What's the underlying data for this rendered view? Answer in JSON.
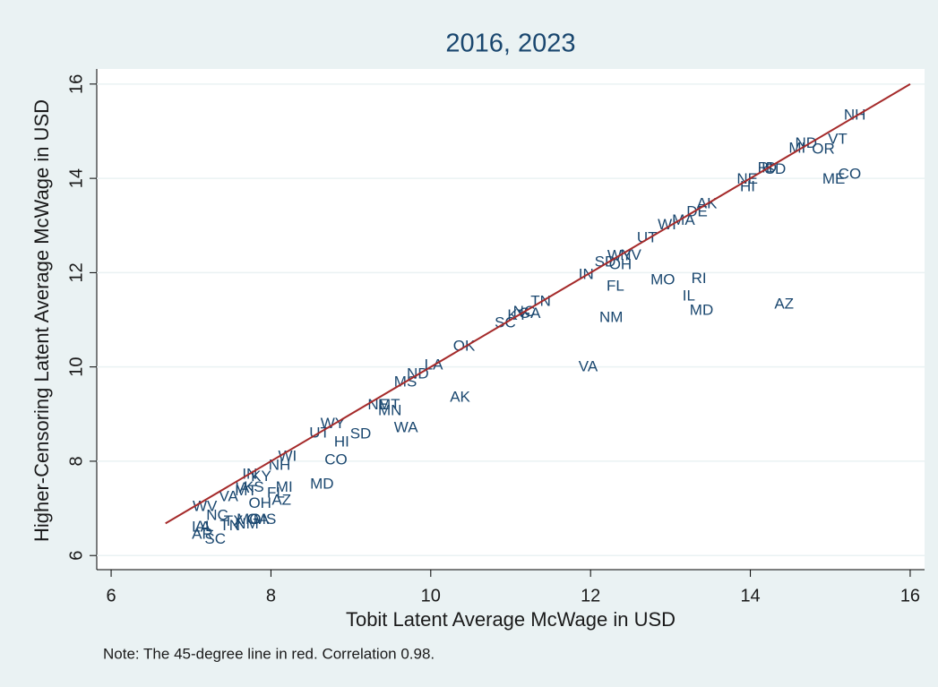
{
  "chart_data": {
    "type": "scatter-labels",
    "title": "2016, 2023",
    "x_label": "Tobit Latent Average McWage in USD",
    "y_label": "Higher-Censoring Latent Average McWage in USD",
    "note": "Note: The 45-degree line in red. Correlation 0.98.",
    "xlim": [
      5.82,
      16.18
    ],
    "ylim": [
      5.7,
      16.32
    ],
    "xticks": [
      6,
      8,
      10,
      12,
      14,
      16
    ],
    "yticks": [
      6,
      8,
      10,
      12,
      14,
      16
    ],
    "grid": true,
    "color": "#1a476f",
    "reference_line": {
      "x": [
        6.68,
        16
      ],
      "y": [
        6.68,
        16
      ],
      "color": "#a52a2a"
    },
    "labels": [
      "NH",
      "VT",
      "ND",
      "MI",
      "OR",
      "CO",
      "ME",
      "RI",
      "ID",
      "SD",
      "NE",
      "HI",
      "AK",
      "DE",
      "MA",
      "WI",
      "UT",
      "WY",
      "NV",
      "SD",
      "OH",
      "IN",
      "FL",
      "MO",
      "RI",
      "IL",
      "MD",
      "AZ",
      "NM",
      "TN",
      "SC",
      "KY",
      "NC",
      "GA",
      "VA",
      "OK",
      "LA",
      "ND",
      "MS",
      "AK",
      "NE",
      "MT",
      "MN",
      "WA",
      "WY",
      "UT",
      "HI",
      "SD",
      "CO",
      "MD",
      "WI",
      "NH",
      "MI",
      "FL",
      "AZ",
      "OH",
      "IN",
      "KY",
      "IA",
      "KS",
      "VA",
      "MT",
      "WV",
      "NC",
      "AL",
      "TX",
      "MO",
      "LA",
      "AR",
      "SC",
      "TN",
      "GA",
      "NM",
      "MS"
    ],
    "x": [
      15.17,
      14.97,
      14.56,
      14.48,
      14.77,
      15.1,
      14.9,
      14.09,
      14.14,
      14.18,
      13.83,
      13.87,
      13.33,
      13.2,
      13.02,
      12.84,
      12.58,
      12.21,
      12.37,
      12.05,
      12.23,
      11.85,
      12.2,
      12.75,
      13.26,
      13.15,
      13.24,
      14.3,
      12.11,
      11.25,
      10.8,
      10.96,
      11.03,
      11.1,
      11.85,
      10.28,
      9.92,
      9.7,
      9.54,
      10.24,
      9.21,
      9.34,
      9.34,
      9.54,
      8.62,
      8.48,
      8.79,
      8.99,
      8.67,
      8.49,
      8.09,
      7.97,
      8.06,
      7.95,
      8.01,
      7.72,
      7.64,
      7.75,
      7.55,
      7.66,
      7.35,
      7.55,
      7.02,
      7.19,
      7.05,
      7.41,
      7.57,
      7.01,
      7.01,
      7.17,
      7.36,
      7.7,
      7.55,
      7.78
    ],
    "y": [
      15.33,
      14.82,
      14.73,
      14.63,
      14.61,
      14.08,
      13.97,
      14.21,
      14.21,
      14.18,
      13.97,
      13.81,
      13.45,
      13.28,
      13.1,
      13.0,
      12.73,
      12.35,
      12.36,
      12.22,
      12.16,
      11.95,
      11.7,
      11.84,
      11.86,
      11.49,
      11.19,
      11.32,
      11.04,
      11.38,
      10.92,
      11.09,
      11.16,
      11.12,
      9.99,
      10.43,
      10.03,
      9.84,
      9.67,
      9.35,
      9.19,
      9.19,
      9.06,
      8.7,
      8.79,
      8.59,
      8.4,
      8.57,
      8.02,
      7.5,
      8.09,
      7.9,
      7.44,
      7.31,
      7.16,
      7.1,
      7.71,
      7.67,
      7.42,
      7.44,
      7.24,
      7.36,
      7.03,
      6.84,
      6.6,
      6.72,
      6.75,
      6.59,
      6.44,
      6.34,
      6.62,
      6.75,
      6.66,
      6.75
    ]
  }
}
